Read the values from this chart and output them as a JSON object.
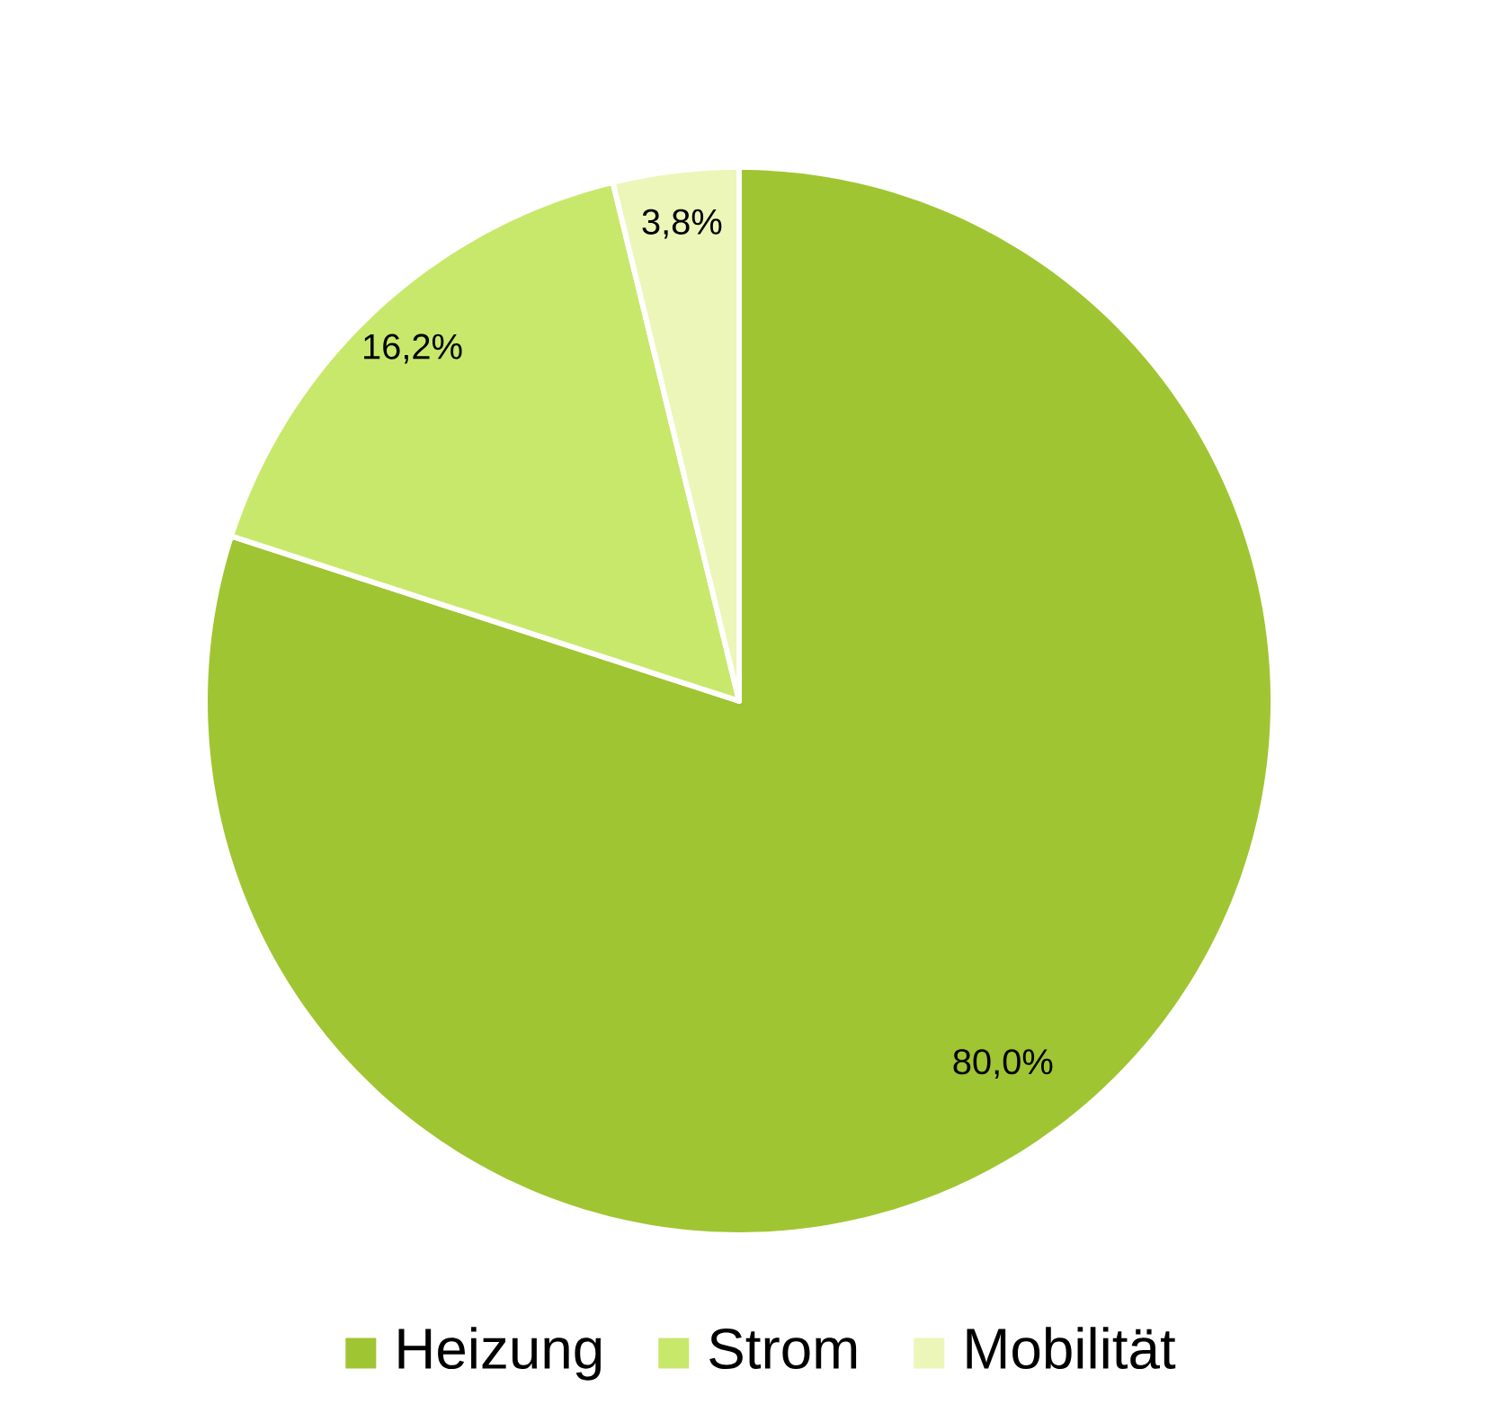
{
  "chart_data": {
    "type": "pie",
    "categories": [
      "Heizung",
      "Strom",
      "Mobilität"
    ],
    "values": [
      80.0,
      16.2,
      3.8
    ],
    "colors": [
      "#a0c532",
      "#c8e86c",
      "#ecf6b8"
    ],
    "value_labels": [
      "80,0%",
      "16,2%",
      "3,8%"
    ],
    "legend": "bottom"
  }
}
